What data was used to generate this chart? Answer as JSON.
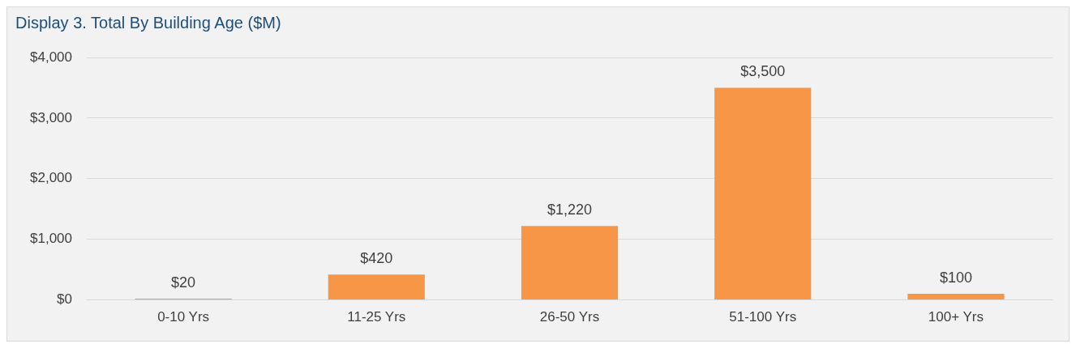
{
  "chart_data": {
    "type": "bar",
    "title": "Display 3. Total By Building Age ($M)",
    "categories": [
      "0-10 Yrs",
      "11-25 Yrs",
      "26-50 Yrs",
      "51-100 Yrs",
      "100+ Yrs"
    ],
    "values": [
      20,
      420,
      1220,
      3500,
      100
    ],
    "value_labels": [
      "$20",
      "$420",
      "$1,220",
      "$3,500",
      "$100"
    ],
    "color": "#f79646",
    "ylim": [
      0,
      4000
    ],
    "yticks": [
      {
        "value": 0,
        "label": "$0"
      },
      {
        "value": 1000,
        "label": "$1,000"
      },
      {
        "value": 2000,
        "label": "$2,000"
      },
      {
        "value": 3000,
        "label": "$3,000"
      },
      {
        "value": 4000,
        "label": "$4,000"
      }
    ],
    "grid": "y",
    "legend": false
  }
}
